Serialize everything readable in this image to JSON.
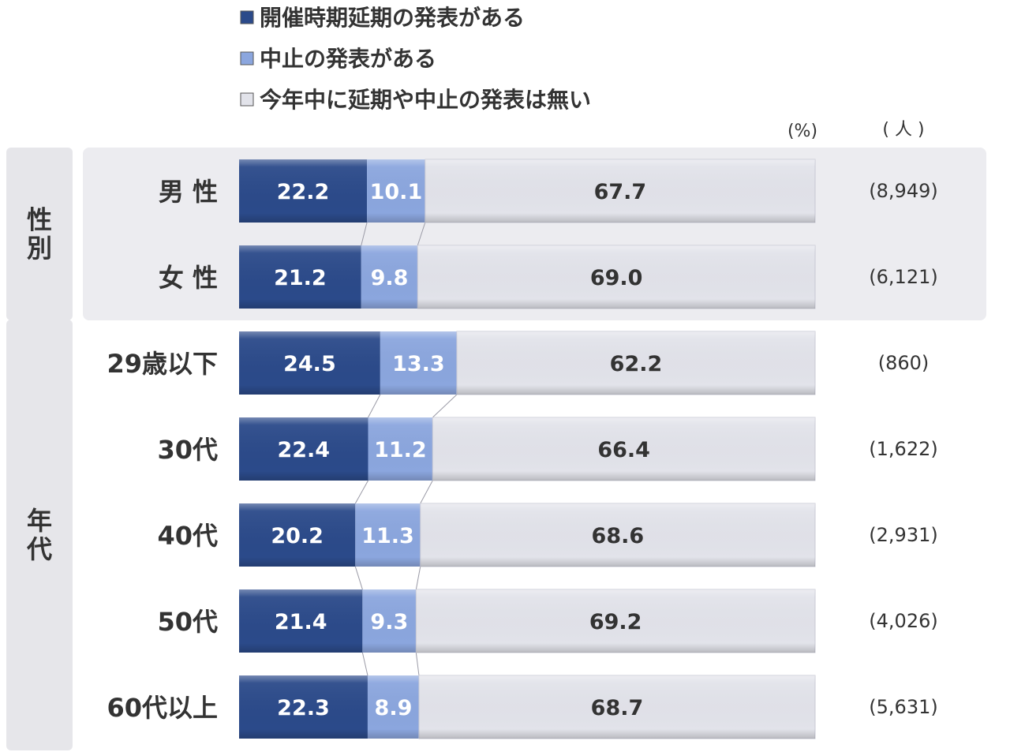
{
  "chart_data": {
    "type": "bar",
    "orientation": "horizontal",
    "stacked": true,
    "normalized": true,
    "unit_label": "(%)",
    "count_label": "( 人 )",
    "legend_position": "top",
    "series": [
      {
        "name": "開催時期延期の発表がある",
        "color": "#2b4a8a",
        "text_color": "#ffffff"
      },
      {
        "name": "中止の発表がある",
        "color": "#8ba6de",
        "text_color": "#ffffff"
      },
      {
        "name": "今年中に延期や中止の発表は無い",
        "color": "#e2e3ea",
        "text_color": "#333333"
      }
    ],
    "groups": [
      {
        "label": "性別",
        "chars": [
          "性",
          "別"
        ],
        "rows": [
          {
            "category": "男 性",
            "values": [
              22.2,
              10.1,
              67.7
            ],
            "n": "(8,949)"
          },
          {
            "category": "女 性",
            "values": [
              21.2,
              9.8,
              69.0
            ],
            "n": "(6,121)"
          }
        ]
      },
      {
        "label": "年代",
        "chars": [
          "年",
          "代"
        ],
        "rows": [
          {
            "category": "29歳以下",
            "values": [
              24.5,
              13.3,
              62.2
            ],
            "n": "(860)"
          },
          {
            "category": "30代",
            "values": [
              22.4,
              11.2,
              66.4
            ],
            "n": "(1,622)"
          },
          {
            "category": "40代",
            "values": [
              20.2,
              11.3,
              68.6
            ],
            "n": "(2,931)"
          },
          {
            "category": "50代",
            "values": [
              21.4,
              9.3,
              69.2
            ],
            "n": "(4,026)"
          },
          {
            "category": "60代以上",
            "values": [
              22.3,
              8.9,
              68.7
            ],
            "n": "(5,631)"
          }
        ]
      }
    ]
  }
}
